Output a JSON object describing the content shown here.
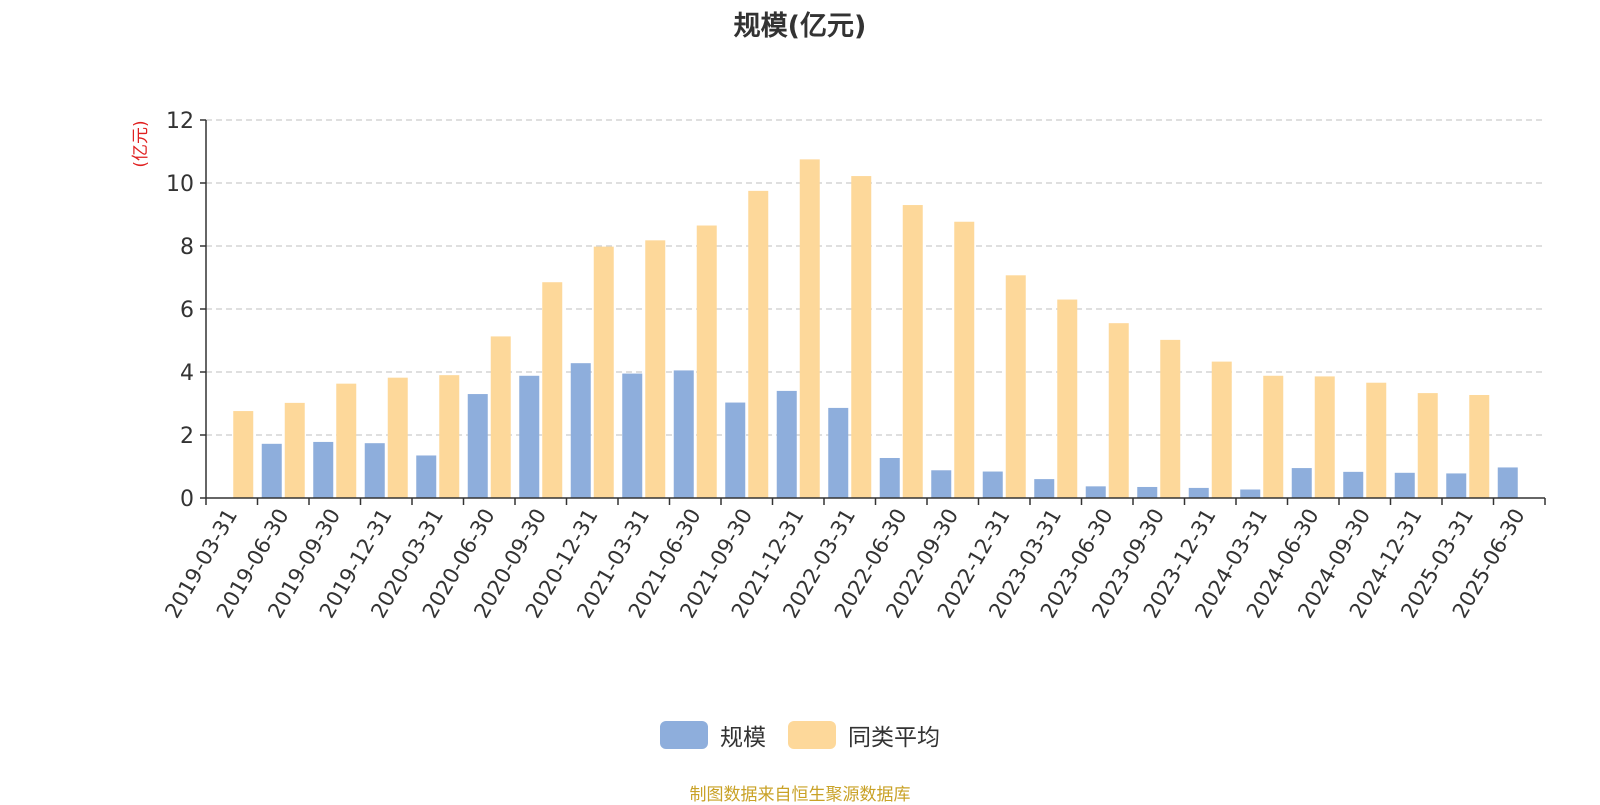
{
  "source_note": "制图数据来自恒生聚源数据库",
  "colors": {
    "series1": "#8eaedc",
    "series2": "#fdd89a",
    "unit": "#e02020",
    "text": "#333333",
    "grid": "#cccccc"
  },
  "chart_data": {
    "type": "bar",
    "title": "规模(亿元)",
    "ylabel": "(亿元)",
    "ylim": [
      0,
      12
    ],
    "yticks": [
      0,
      2,
      4,
      6,
      8,
      10,
      12
    ],
    "grid": "dashed horizontal",
    "legend_position": "bottom",
    "categories": [
      "2019-03-31",
      "2019-06-30",
      "2019-09-30",
      "2019-12-31",
      "2020-03-31",
      "2020-06-30",
      "2020-09-30",
      "2020-12-31",
      "2021-03-31",
      "2021-06-30",
      "2021-09-30",
      "2021-12-31",
      "2022-03-31",
      "2022-06-30",
      "2022-09-30",
      "2022-12-31",
      "2023-03-31",
      "2023-06-30",
      "2023-09-30",
      "2023-12-31",
      "2024-03-31",
      "2024-06-30",
      "2024-09-30",
      "2024-12-31",
      "2025-03-31",
      "2025-06-30"
    ],
    "series": [
      {
        "name": "规模",
        "values": [
          null,
          1.72,
          1.78,
          1.74,
          1.35,
          3.3,
          3.88,
          4.28,
          3.95,
          4.05,
          3.03,
          3.4,
          2.86,
          1.27,
          0.88,
          0.84,
          0.6,
          0.37,
          0.35,
          0.32,
          0.27,
          0.95,
          0.83,
          0.8,
          0.78,
          0.97
        ]
      },
      {
        "name": "同类平均",
        "values": [
          2.76,
          3.02,
          3.63,
          3.82,
          3.9,
          5.13,
          6.85,
          7.98,
          8.18,
          8.65,
          9.75,
          10.75,
          10.22,
          9.3,
          8.77,
          7.07,
          6.3,
          5.55,
          5.02,
          4.33,
          3.88,
          3.86,
          3.66,
          3.33,
          3.27,
          null
        ]
      }
    ]
  }
}
